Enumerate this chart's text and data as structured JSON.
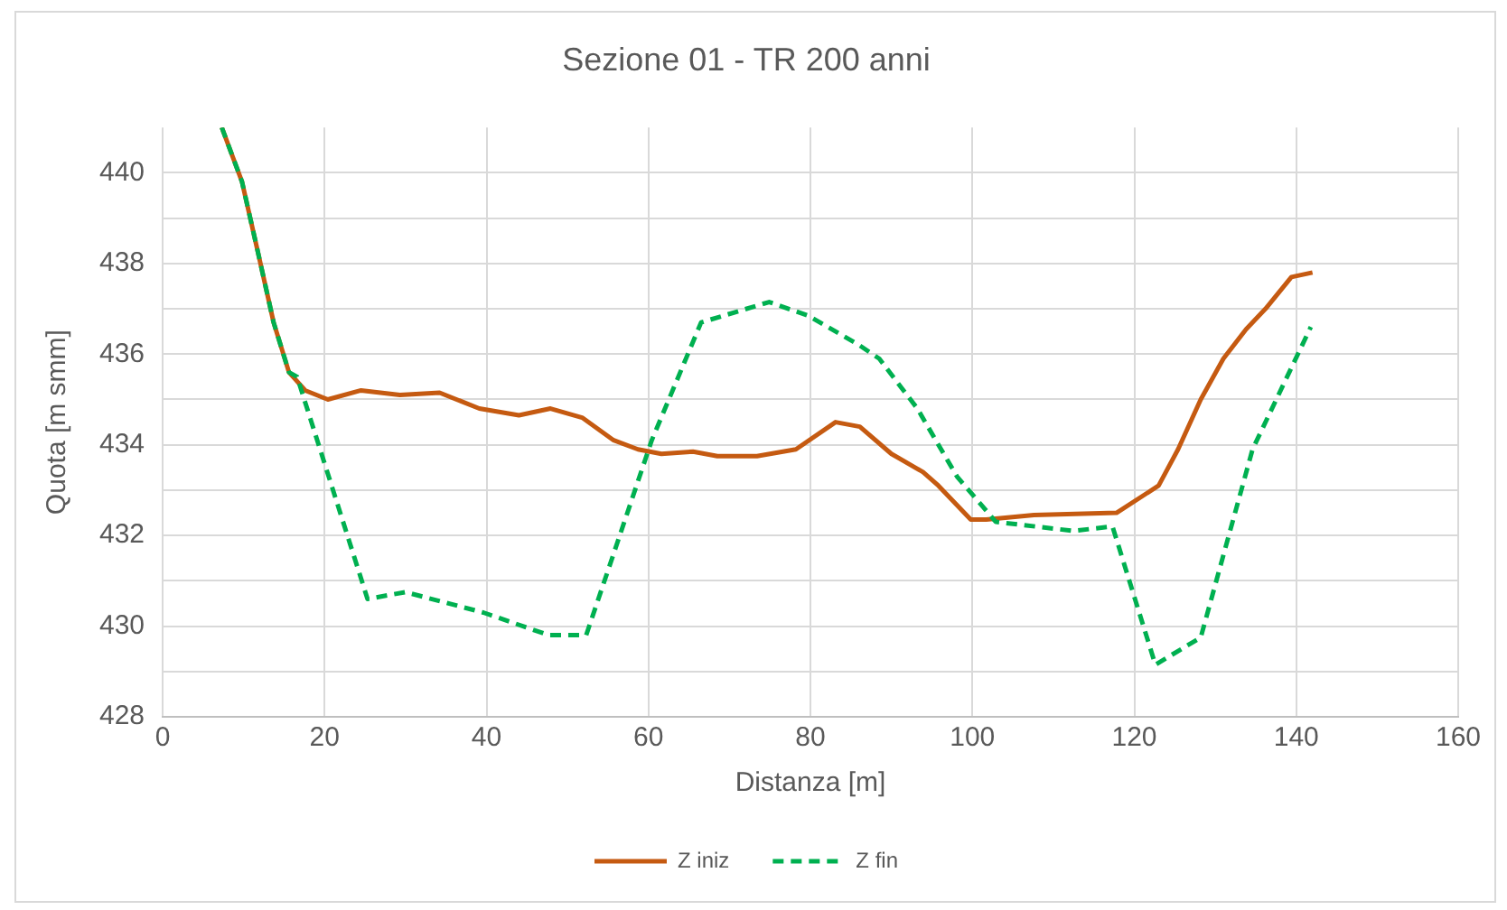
{
  "chart_data": {
    "type": "line",
    "title": "Sezione 01 - TR 200 anni",
    "xlabel": "Distanza [m]",
    "ylabel": "Quota [m smm]",
    "xlim": [
      0,
      160
    ],
    "xticks": [
      0,
      20,
      40,
      60,
      80,
      100,
      120,
      140,
      160
    ],
    "ylim": [
      428,
      441
    ],
    "yticks": [
      428,
      {
        "value": 429,
        "label": null
      },
      430,
      {
        "value": 431,
        "label": null
      },
      432,
      {
        "value": 433,
        "label": null
      },
      434,
      {
        "value": 435,
        "label": null
      },
      436,
      {
        "value": 437,
        "label": null
      },
      438,
      {
        "value": 439,
        "label": null
      },
      440
    ],
    "grid": true,
    "legend": "bottom",
    "marker": "none",
    "series": [
      {
        "name": "Z iniz",
        "color": "#c55a11",
        "line_style": "solid",
        "x": [
          7.3,
          9.8,
          11.7,
          13.7,
          15.6,
          17.6,
          20.4,
          24.5,
          29.3,
          34.2,
          39.1,
          44,
          47.9,
          51.8,
          55.7,
          58.7,
          61.6,
          65.5,
          68.5,
          73.4,
          78.2,
          83.1,
          86.1,
          90,
          93.9,
          95.8,
          99.8,
          101.7,
          107.6,
          117.8,
          123,
          125.4,
          128.2,
          131,
          133.8,
          136.2,
          139.4,
          142
        ],
        "values": [
          441,
          439.8,
          438.3,
          436.7,
          435.6,
          435.2,
          435.0,
          435.2,
          435.1,
          435.15,
          434.8,
          434.65,
          434.8,
          434.6,
          434.1,
          433.9,
          433.8,
          433.85,
          433.75,
          433.75,
          433.9,
          434.5,
          434.4,
          433.8,
          433.4,
          433.1,
          432.35,
          432.35,
          432.45,
          432.5,
          433.1,
          433.9,
          435.0,
          435.9,
          436.55,
          437.0,
          437.7,
          437.8
        ]
      },
      {
        "name": "Z fin",
        "color": "#00b050",
        "line_style": "dashed",
        "x": [
          7.3,
          9.8,
          11.7,
          13.7,
          15.6,
          16.6,
          25.3,
          30,
          39.6,
          47.7,
          52.3,
          55.7,
          60.4,
          66.5,
          74.9,
          79.7,
          86,
          88.5,
          93.2,
          98.1,
          102.9,
          112.5,
          117.3,
          122.6,
          128.2,
          134.6,
          141.8
        ],
        "values": [
          441,
          439.8,
          438.3,
          436.7,
          435.6,
          435.5,
          430.6,
          430.75,
          430.3,
          429.8,
          429.8,
          431.6,
          434.1,
          436.7,
          437.15,
          436.85,
          436.2,
          435.9,
          434.8,
          433.3,
          432.3,
          432.1,
          432.2,
          429.15,
          429.75,
          433.9,
          436.6
        ]
      }
    ]
  }
}
